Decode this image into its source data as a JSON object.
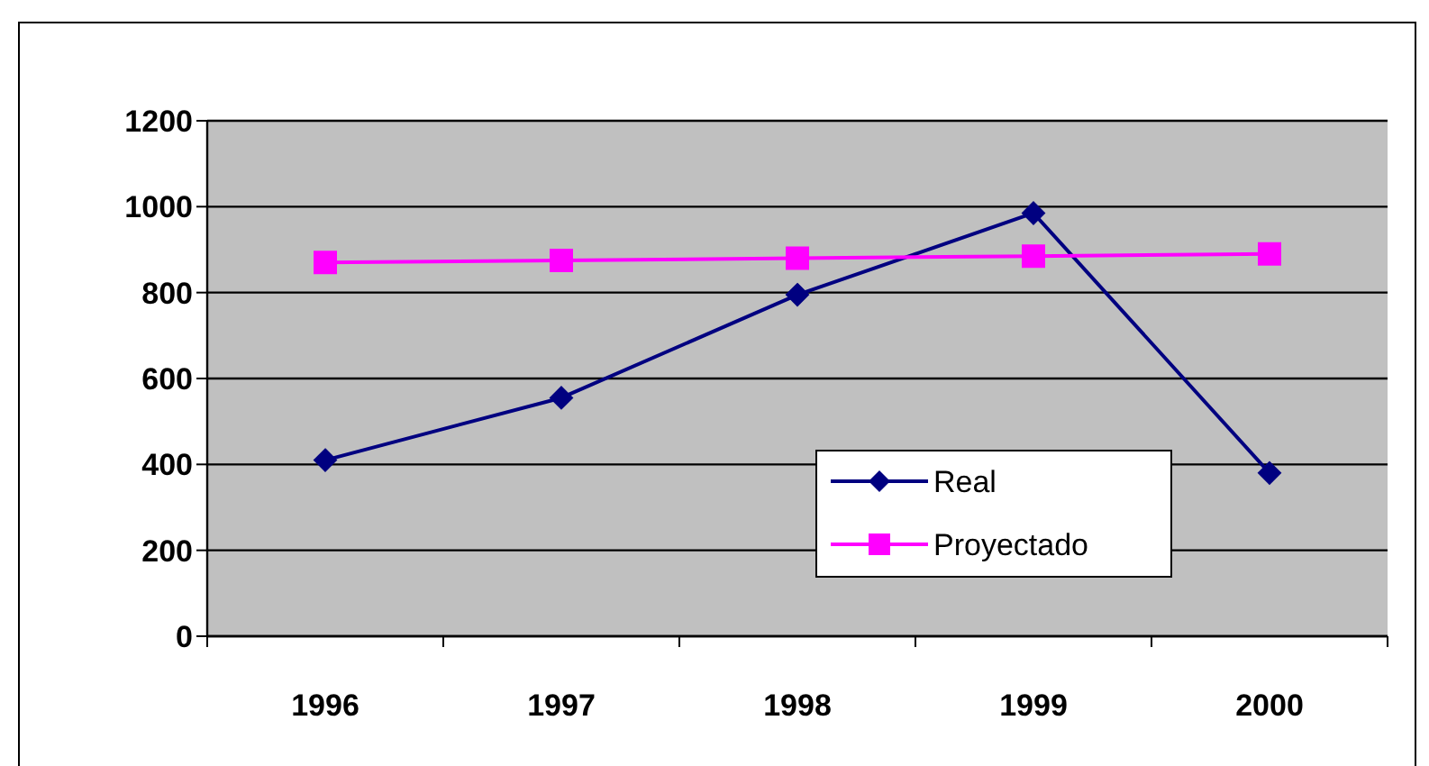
{
  "chart_data": {
    "type": "line",
    "categories": [
      "1996",
      "1997",
      "1998",
      "1999",
      "2000"
    ],
    "series": [
      {
        "name": "Real",
        "color": "#000080",
        "marker": "diamond",
        "values": [
          410,
          555,
          795,
          985,
          380
        ]
      },
      {
        "name": "Proyectado",
        "color": "#ff00ff",
        "marker": "square",
        "values": [
          870,
          875,
          880,
          885,
          890
        ]
      }
    ],
    "ylim": [
      0,
      1200
    ],
    "yticks": [
      0,
      200,
      400,
      600,
      800,
      1000,
      1200
    ],
    "grid": "y",
    "legend": "bottom right",
    "line_style": "solid"
  }
}
